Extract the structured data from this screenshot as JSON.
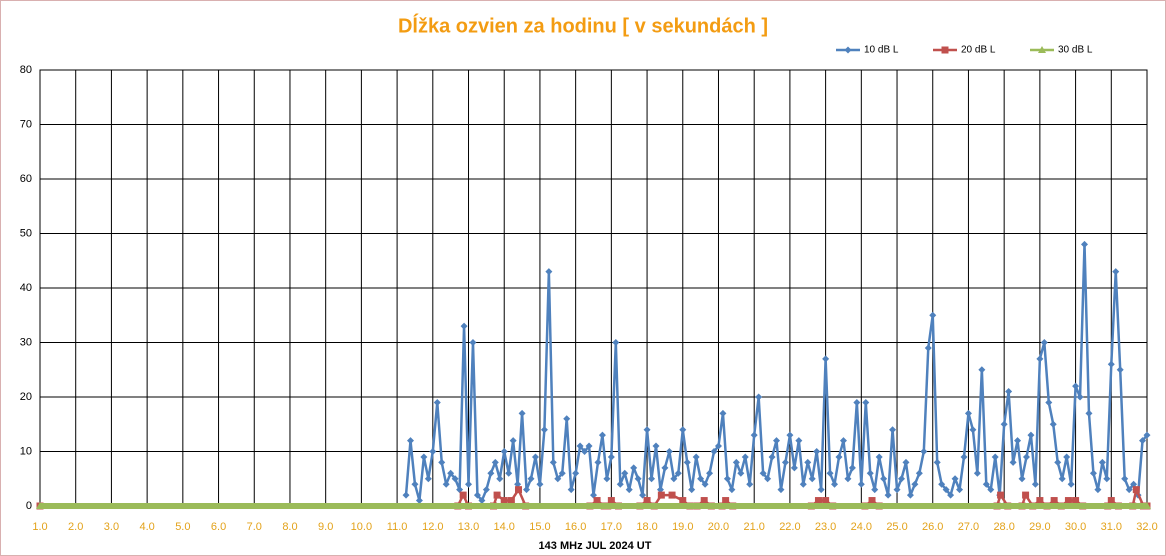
{
  "chart_data": {
    "type": "line",
    "title": "Dĺžka ozvien za hodinu [ v sekundách ]",
    "xlabel": "143 MHz JUL  2024  UT",
    "xlim": [
      1,
      32
    ],
    "xticks": [
      {
        "value": 1,
        "label": "1.0"
      },
      {
        "value": 2,
        "label": "2.0"
      },
      {
        "value": 3,
        "label": "3.0"
      },
      {
        "value": 4,
        "label": "4.0"
      },
      {
        "value": 5,
        "label": "5.0"
      },
      {
        "value": 6,
        "label": "6.0"
      },
      {
        "value": 7,
        "label": "7.0"
      },
      {
        "value": 8,
        "label": "8.0"
      },
      {
        "value": 9,
        "label": "9.0"
      },
      {
        "value": 10,
        "label": "10.0"
      },
      {
        "value": 11,
        "label": "11.0"
      },
      {
        "value": 12,
        "label": "12.0"
      },
      {
        "value": 13,
        "label": "13.0"
      },
      {
        "value": 14,
        "label": "14.0"
      },
      {
        "value": 15,
        "label": "15.0"
      },
      {
        "value": 16,
        "label": "16.0"
      },
      {
        "value": 17,
        "label": "17.0"
      },
      {
        "value": 18,
        "label": "18.0"
      },
      {
        "value": 19,
        "label": "19.0"
      },
      {
        "value": 20,
        "label": "20.0"
      },
      {
        "value": 21,
        "label": "21.0"
      },
      {
        "value": 22,
        "label": "22.0"
      },
      {
        "value": 23,
        "label": "23.0"
      },
      {
        "value": 24,
        "label": "24.0"
      },
      {
        "value": 25,
        "label": "25.0"
      },
      {
        "value": 26,
        "label": "26.0"
      },
      {
        "value": 27,
        "label": "27.0"
      },
      {
        "value": 28,
        "label": "28.0"
      },
      {
        "value": 29,
        "label": "29.0"
      },
      {
        "value": 30,
        "label": "30.0"
      },
      {
        "value": 31,
        "label": "31.0"
      },
      {
        "value": 32,
        "label": "32.0"
      }
    ],
    "ylim": [
      0,
      80
    ],
    "yticks": [
      0,
      10,
      20,
      30,
      40,
      50,
      60,
      70,
      80
    ],
    "grid": true,
    "legend": "top-right",
    "series": [
      {
        "name": "10 dB L",
        "color": "#4f81bd",
        "marker": "diamond",
        "x": [
          11.25,
          11.375,
          11.5,
          11.625,
          11.75,
          11.875,
          12,
          12.125,
          12.25,
          12.375,
          12.5,
          12.625,
          12.75,
          12.875,
          13,
          13.125,
          13.25,
          13.375,
          13.5,
          13.625,
          13.75,
          13.875,
          14,
          14.125,
          14.25,
          14.375,
          14.5,
          14.625,
          14.75,
          14.875,
          15,
          15.125,
          15.25,
          15.375,
          15.5,
          15.625,
          15.75,
          15.875,
          16,
          16.125,
          16.25,
          16.375,
          16.5,
          16.625,
          16.75,
          16.875,
          17,
          17.125,
          17.25,
          17.375,
          17.5,
          17.625,
          17.75,
          17.875,
          18,
          18.125,
          18.25,
          18.375,
          18.5,
          18.625,
          18.75,
          18.875,
          19,
          19.125,
          19.25,
          19.375,
          19.5,
          19.625,
          19.75,
          19.875,
          20,
          20.125,
          20.25,
          20.375,
          20.5,
          20.625,
          20.75,
          20.875,
          21,
          21.125,
          21.25,
          21.375,
          21.5,
          21.625,
          21.75,
          21.875,
          22,
          22.125,
          22.25,
          22.375,
          22.5,
          22.625,
          22.75,
          22.875,
          23,
          23.125,
          23.25,
          23.375,
          23.5,
          23.625,
          23.75,
          23.875,
          24,
          24.125,
          24.25,
          24.375,
          24.5,
          24.625,
          24.75,
          24.875,
          25,
          25.125,
          25.25,
          25.375,
          25.5,
          25.625,
          25.75,
          25.875,
          26,
          26.125,
          26.25,
          26.375,
          26.5,
          26.625,
          26.75,
          26.875,
          27,
          27.125,
          27.25,
          27.375,
          27.5,
          27.625,
          27.75,
          27.875,
          28,
          28.125,
          28.25,
          28.375,
          28.5,
          28.625,
          28.75,
          28.875,
          29,
          29.125,
          29.25,
          29.375,
          29.5,
          29.625,
          29.75,
          29.875,
          30,
          30.125,
          30.25,
          30.375,
          30.5,
          30.625,
          30.75,
          30.875,
          31,
          31.125,
          31.25,
          31.375,
          31.5,
          31.625,
          31.75,
          31.875,
          32
        ],
        "values": [
          2,
          12,
          4,
          1,
          9,
          5,
          10,
          19,
          8,
          4,
          6,
          5,
          3,
          33,
          4,
          30,
          2,
          1,
          3,
          6,
          8,
          5,
          10,
          6,
          12,
          4,
          17,
          3,
          5,
          9,
          4,
          14,
          43,
          8,
          5,
          6,
          16,
          3,
          6,
          11,
          10,
          11,
          2,
          8,
          13,
          5,
          9,
          30,
          4,
          6,
          3,
          7,
          5,
          2,
          14,
          5,
          11,
          3,
          7,
          10,
          5,
          6,
          14,
          8,
          3,
          9,
          5,
          4,
          6,
          10,
          11,
          17,
          5,
          3,
          8,
          6,
          9,
          4,
          13,
          20,
          6,
          5,
          9,
          12,
          3,
          8,
          13,
          7,
          12,
          4,
          8,
          5,
          10,
          3,
          27,
          6,
          4,
          9,
          12,
          5,
          7,
          19,
          4,
          19,
          6,
          3,
          9,
          5,
          2,
          14,
          3,
          5,
          8,
          2,
          4,
          6,
          10,
          29,
          35,
          8,
          4,
          3,
          2,
          5,
          3,
          9,
          17,
          14,
          6,
          25,
          4,
          3,
          9,
          2,
          15,
          21,
          8,
          12,
          5,
          9,
          13,
          4,
          27,
          30,
          19,
          15,
          8,
          5,
          9,
          4,
          22,
          20,
          48,
          17,
          6,
          3,
          8,
          5,
          26,
          43,
          25,
          5,
          3,
          4,
          2,
          12,
          13
        ]
      },
      {
        "name": "20 dB L",
        "color": "#c0504d",
        "marker": "square",
        "x": [
          1,
          12.7,
          12.85,
          13,
          13.7,
          13.8,
          14,
          14.2,
          14.4,
          14.6,
          16.4,
          16.6,
          16.8,
          16.9,
          17,
          17.2,
          17.8,
          18,
          18.2,
          18.4,
          18.7,
          19,
          19.2,
          19.4,
          19.6,
          19.8,
          20.1,
          20.2,
          20.4,
          22.6,
          22.8,
          23,
          23.2,
          24.1,
          24.3,
          24.5,
          27.8,
          27.9,
          28.1,
          28.5,
          28.6,
          28.8,
          29,
          29.2,
          29.4,
          29.6,
          29.8,
          30,
          30.2,
          30.9,
          31,
          31.2,
          31.6,
          31.7,
          31.9,
          32
        ],
        "values": [
          0,
          0,
          2,
          0,
          0,
          2,
          1,
          1,
          3,
          0,
          0,
          1,
          0,
          0,
          1,
          0,
          0,
          1,
          0,
          2,
          2,
          1,
          0,
          0,
          1,
          0,
          0,
          1,
          0,
          0,
          1,
          1,
          0,
          0,
          1,
          0,
          0,
          2,
          0,
          0,
          2,
          0,
          1,
          0,
          1,
          0,
          1,
          1,
          0,
          0,
          1,
          0,
          0,
          3,
          0,
          0
        ]
      },
      {
        "name": "30 dB L",
        "color": "#9bbb59",
        "marker": "triangle",
        "x": [
          1,
          32
        ],
        "values": [
          0,
          0
        ]
      }
    ]
  }
}
